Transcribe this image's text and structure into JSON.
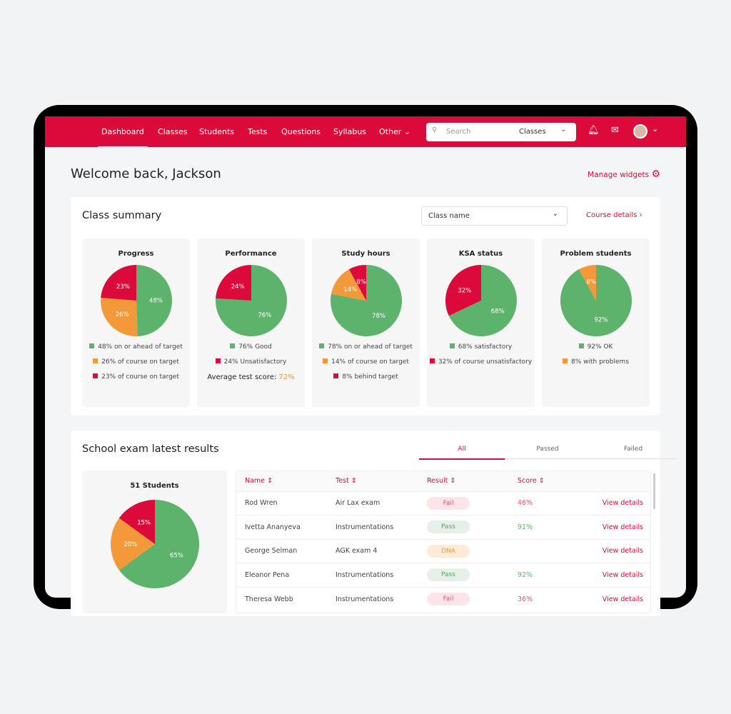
{
  "nav": {
    "items": [
      "Dashboard",
      "Classes",
      "Students",
      "Tests",
      "Questions",
      "Syllabus",
      "Other"
    ],
    "search_placeholder": "Search",
    "search_scope": "Classes"
  },
  "header": {
    "title": "Welcome back, Jackson",
    "manage": "Manage widgets"
  },
  "summary": {
    "title": "Class summary",
    "class_select": "Class name",
    "course_details": "Course details",
    "widgets": [
      {
        "title": "Progress",
        "slices": [
          {
            "label": "48% on or ahead of target",
            "value": 48,
            "color": "#5db36b"
          },
          {
            "label": "26% of course on target",
            "value": 26,
            "color": "#f4993a"
          },
          {
            "label": "23% of course on target",
            "value": 23,
            "color": "#dc0a3a"
          }
        ]
      },
      {
        "title": "Performance",
        "slices": [
          {
            "label": "76% Good",
            "value": 76,
            "color": "#5db36b"
          },
          {
            "label": "24% Unsatisfactory",
            "value": 24,
            "color": "#dc0a3a"
          }
        ],
        "avg_label": "Average test score:",
        "avg_value": "72%"
      },
      {
        "title": "Study hours",
        "slices": [
          {
            "label": "78% on or ahead of target",
            "value": 78,
            "color": "#5db36b"
          },
          {
            "label": "14% of course on target",
            "value": 14,
            "color": "#f4993a"
          },
          {
            "label": "8% behind target",
            "value": 8,
            "color": "#dc0a3a"
          }
        ]
      },
      {
        "title": "KSA status",
        "slices": [
          {
            "label": "68% satisfactory",
            "value": 68,
            "color": "#5db36b"
          },
          {
            "label": "32% of course unsatisfactory",
            "value": 32,
            "color": "#dc0a3a"
          }
        ]
      },
      {
        "title": "Problem students",
        "slices": [
          {
            "label": "92% OK",
            "value": 92,
            "color": "#5db36b"
          },
          {
            "label": "8% with problems",
            "value": 8,
            "color": "#f4993a"
          }
        ]
      }
    ]
  },
  "exam": {
    "title": "School exam latest results",
    "tabs": [
      "All",
      "Passed",
      "Failed"
    ],
    "students": "51 Students",
    "slices": [
      {
        "value": 65,
        "color": "#5db36b"
      },
      {
        "value": 20,
        "color": "#f4993a"
      },
      {
        "value": 15,
        "color": "#dc0a3a"
      }
    ],
    "columns": [
      "Name",
      "Test",
      "Result",
      "Score"
    ],
    "link": "View details",
    "rows": [
      {
        "name": "Rod Wren",
        "test": "Air Lax exam",
        "result": "Fail",
        "score": "46%"
      },
      {
        "name": "Ivetta Ananyeva",
        "test": "Instrumentations",
        "result": "Pass",
        "score": "91%"
      },
      {
        "name": "George Selman",
        "test": "AGK exam 4",
        "result": "DNA",
        "score": ""
      },
      {
        "name": "Eleanor Pena",
        "test": "Instrumentations",
        "result": "Pass",
        "score": "92%"
      },
      {
        "name": "Theresa Webb",
        "test": "Instrumentations",
        "result": "Fail",
        "score": "36%"
      }
    ]
  }
}
